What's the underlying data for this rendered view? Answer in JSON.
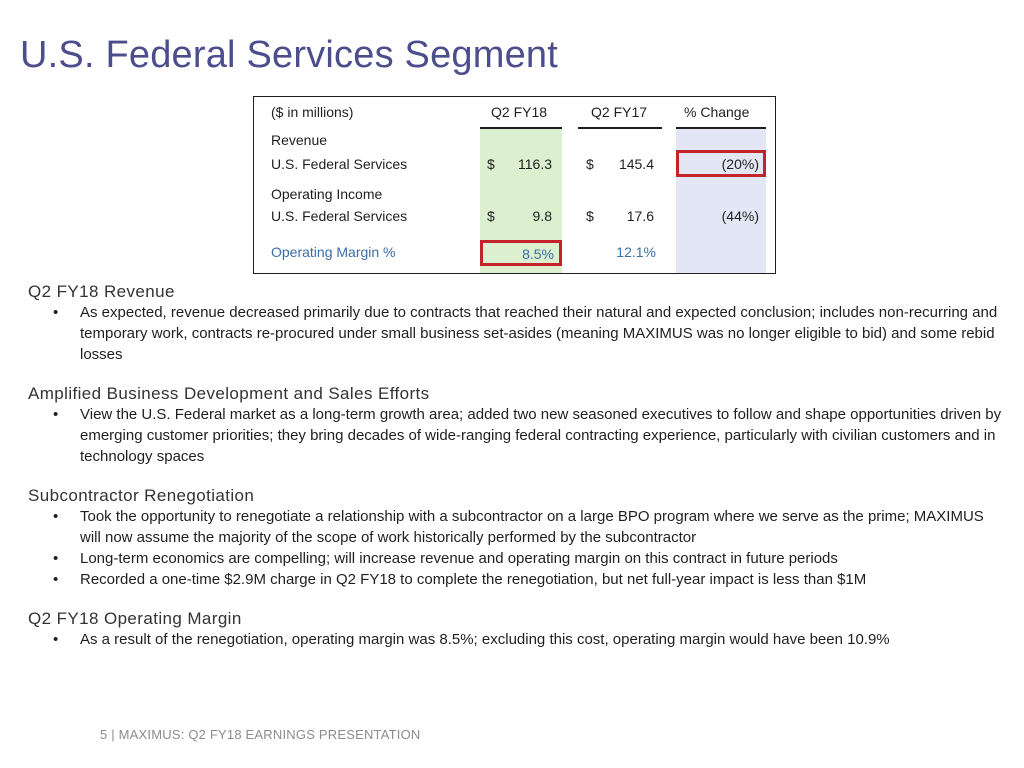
{
  "title": "U.S. Federal Services Segment",
  "table": {
    "headers": {
      "units": "($ in millions)",
      "q2fy18": "Q2 FY18",
      "q2fy17": "Q2 FY17",
      "change": "% Change"
    },
    "revenue_heading": "Revenue",
    "revenue_row": {
      "label": "U.S. Federal Services",
      "cur18": "$",
      "val18": "116.3",
      "cur17": "$",
      "val17": "145.4",
      "change": "(20%)"
    },
    "opincome_heading": "Operating Income",
    "opincome_row": {
      "label": "U.S. Federal Services",
      "cur18": "$",
      "val18": "9.8",
      "cur17": "$",
      "val17": "17.6",
      "change": "(44%)"
    },
    "margin_row": {
      "label": "Operating Margin %",
      "val18": "8.5%",
      "val17": "12.1%"
    },
    "highlight_color": "#c3232b"
  },
  "sections": [
    {
      "heading": "Q2 FY18 Revenue",
      "bullets": [
        "As expected, revenue decreased primarily due to contracts that reached their natural and expected conclusion; includes non-recurring and temporary work, contracts re-procured under small business set-asides (meaning MAXIMUS was no longer eligible to bid) and some rebid losses"
      ]
    },
    {
      "heading": "Amplified Business Development and Sales Efforts",
      "bullets": [
        "View the U.S. Federal market as a long-term growth area; added two new seasoned executives to follow and shape opportunities driven by emerging customer priorities; they bring decades of wide-ranging federal contracting experience, particularly with civilian customers and in technology spaces"
      ]
    },
    {
      "heading": "Subcontractor Renegotiation",
      "bullets": [
        "Took the opportunity to renegotiate a relationship with a subcontractor on a large BPO program where we serve as the prime; MAXIMUS will now assume the majority of the scope of work historically performed by the subcontractor",
        "Long-term economics are compelling; will increase revenue and operating margin on this contract in future periods",
        "Recorded a one-time $2.9M charge in Q2 FY18 to complete the renegotiation, but net full-year impact is less than $1M"
      ]
    },
    {
      "heading": "Q2 FY18 Operating Margin",
      "bullets": [
        "As a result of the renegotiation, operating margin was 8.5%; excluding this cost, operating margin would have been 10.9%"
      ]
    }
  ],
  "bullet_char": "•",
  "footer": "5 | MAXIMUS: Q2 FY18 EARNINGS PRESENTATION"
}
